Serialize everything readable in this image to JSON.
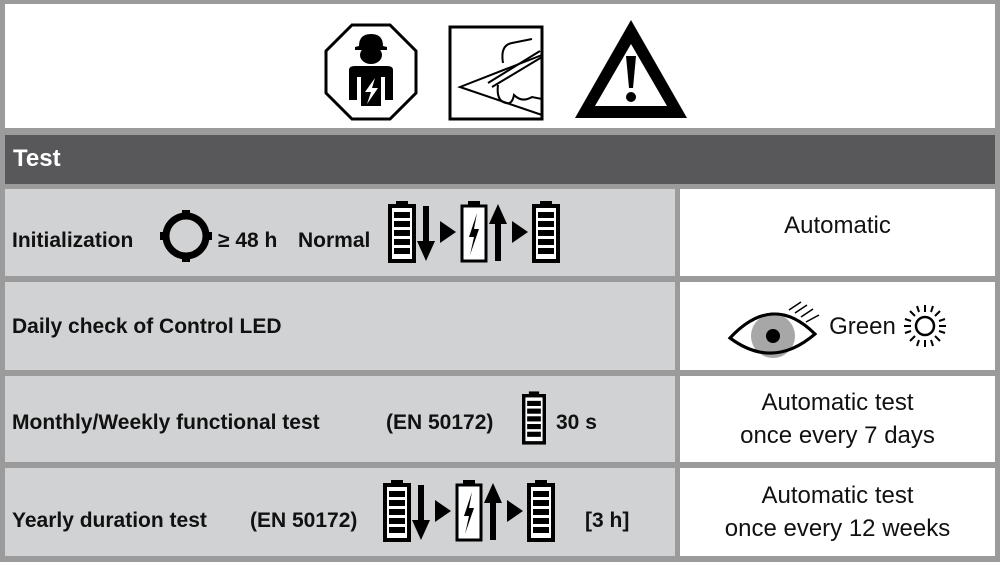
{
  "icons": [
    "qualified-electrician-icon",
    "read-instructions-icon",
    "warning-icon"
  ],
  "header": {
    "title": "Test"
  },
  "rows": [
    {
      "label": "Initialization",
      "duration": "≥ 48 h",
      "mode": "Normal",
      "result": "Automatic"
    },
    {
      "label": "Daily check of Control LED",
      "result": "Green"
    },
    {
      "label": "Monthly/Weekly functional test",
      "standard": "(EN 50172)",
      "duration": "30 s",
      "result_line1": "Automatic test",
      "result_line2": "once every 7 days"
    },
    {
      "label": "Yearly duration test",
      "standard": "(EN 50172)",
      "duration": "[3 h]",
      "result_line1": "Automatic test",
      "result_line2": "once every 12 weeks"
    }
  ],
  "colors": {
    "header_bg": "#58585a",
    "left_cell_bg": "#d1d2d3",
    "border": "#9b9b9b"
  }
}
